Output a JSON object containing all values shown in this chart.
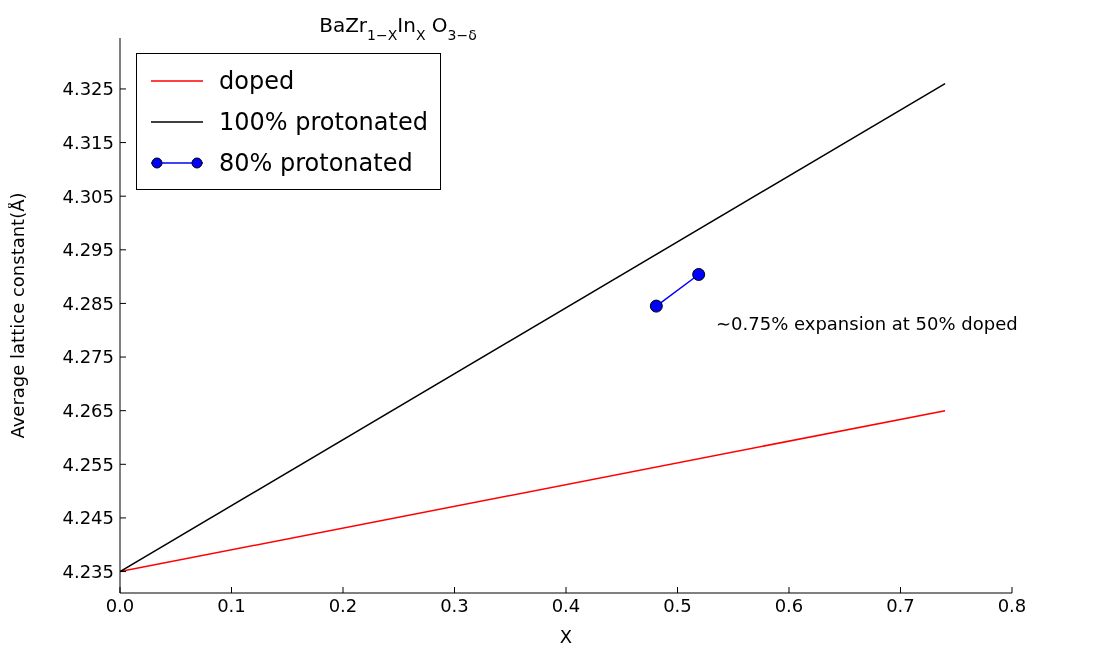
{
  "chart_data": {
    "type": "line",
    "title": "BaZr$_{1−X}$In$_{X}$ O$_{3−δ}$",
    "xlabel": "X",
    "ylabel": "Average lattice constant(Å)",
    "xlim": [
      0,
      0.8
    ],
    "xticks": [
      {
        "value": 0,
        "label": "0.0"
      },
      0.1,
      0.2,
      0.3,
      0.4,
      0.5,
      0.6,
      0.7,
      0.8
    ],
    "ylim": [
      4.231,
      4.3345
    ],
    "yticks": [
      4.235,
      4.245,
      4.255,
      4.265,
      4.275,
      4.285,
      4.295,
      4.305,
      4.315,
      4.325
    ],
    "grid": false,
    "legend": "top left",
    "line_style": "solid",
    "series": [
      {
        "name": "doped",
        "color": "#ff0000",
        "x": [
          0,
          0.74
        ],
        "values": [
          4.235,
          4.265
        ],
        "marker": "none"
      },
      {
        "name": "100% protonated",
        "color": "#000000",
        "x": [
          0,
          0.74
        ],
        "values": [
          4.235,
          4.326
        ],
        "marker": "none"
      },
      {
        "name": "80% protonated",
        "color": "#0000ff",
        "x": [
          0.481,
          0.519
        ],
        "values": [
          4.2845,
          4.2904
        ],
        "marker": "circle"
      }
    ],
    "annotations": [
      "∼0.75% expansion at 50% doped"
    ]
  }
}
